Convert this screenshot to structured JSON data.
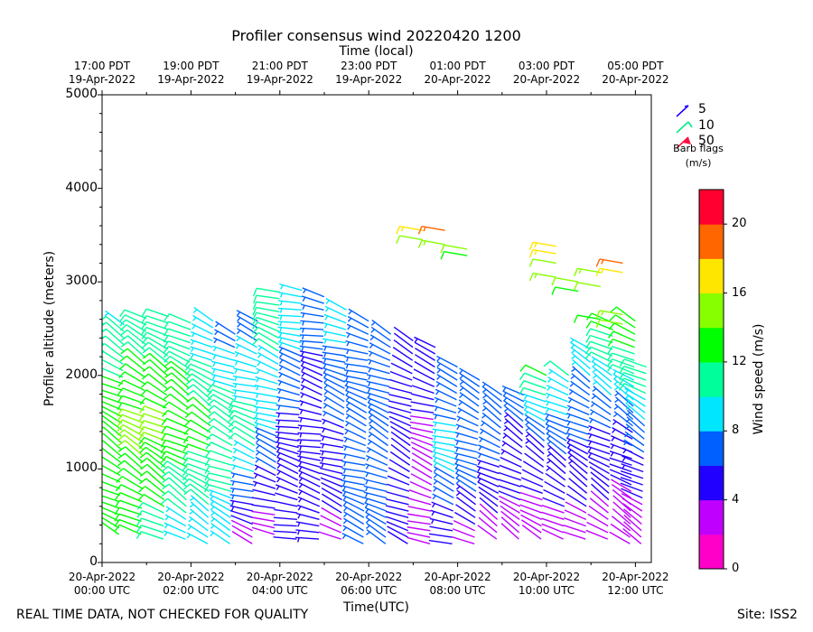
{
  "chart_data": {
    "type": "wind-barb-profile",
    "title": "Profiler consensus wind 20220420 1200",
    "top_axis_title": "Time (local)",
    "xlabel": "Time(UTC)",
    "ylabel": "Profiler altitude (meters)",
    "ylim": [
      0,
      5000
    ],
    "yticks": [
      0,
      1000,
      2000,
      3000,
      4000,
      5000
    ],
    "xlim_hours_utc": [
      0,
      12.33
    ],
    "bottom_ticks": [
      {
        "hour": 0,
        "date": "20-Apr-2022",
        "time": "00:00 UTC"
      },
      {
        "hour": 2,
        "date": "20-Apr-2022",
        "time": "02:00 UTC"
      },
      {
        "hour": 4,
        "date": "20-Apr-2022",
        "time": "04:00 UTC"
      },
      {
        "hour": 6,
        "date": "20-Apr-2022",
        "time": "06:00 UTC"
      },
      {
        "hour": 8,
        "date": "20-Apr-2022",
        "time": "08:00 UTC"
      },
      {
        "hour": 10,
        "date": "20-Apr-2022",
        "time": "10:00 UTC"
      },
      {
        "hour": 12,
        "date": "20-Apr-2022",
        "time": "12:00 UTC"
      }
    ],
    "top_ticks": [
      {
        "hour": 0,
        "time": "17:00 PDT",
        "date": "19-Apr-2022"
      },
      {
        "hour": 2,
        "time": "19:00 PDT",
        "date": "19-Apr-2022"
      },
      {
        "hour": 4,
        "time": "21:00 PDT",
        "date": "19-Apr-2022"
      },
      {
        "hour": 6,
        "time": "23:00 PDT",
        "date": "19-Apr-2022"
      },
      {
        "hour": 8,
        "time": "01:00 PDT",
        "date": "20-Apr-2022"
      },
      {
        "hour": 10,
        "time": "03:00 PDT",
        "date": "20-Apr-2022"
      },
      {
        "hour": 12,
        "time": "05:00 PDT",
        "date": "20-Apr-2022"
      }
    ],
    "legend": {
      "title": "Barb flags",
      "units": "(m/s)",
      "entries": [
        {
          "label": "5",
          "color": "#2200ff"
        },
        {
          "label": "10",
          "color": "#00ee88"
        },
        {
          "label": "50",
          "color": "#ff1040"
        }
      ]
    },
    "colorbar": {
      "label": "Wind speed (m/s)",
      "range": [
        0,
        22
      ],
      "tick_values": [
        0,
        4,
        8,
        12,
        16,
        20
      ],
      "colors": [
        "#ff00c8",
        "#c000ff",
        "#2200ff",
        "#0060ff",
        "#00e6ff",
        "#00ff9a",
        "#00ff00",
        "#88ff00",
        "#ffe600",
        "#ff6600",
        "#ff0030"
      ]
    },
    "columns": [
      {
        "hour": 0.05,
        "alt_min": 300,
        "alt_max": 2600,
        "speed_low": 13,
        "speed_mid": 14,
        "speed_high": 9.5,
        "dir": 300
      },
      {
        "hour": 0.5,
        "alt_min": 300,
        "alt_max": 2600,
        "speed_low": 13,
        "speed_mid": 14,
        "speed_high": 9.5,
        "dir": 300
      },
      {
        "hour": 1.0,
        "alt_min": 300,
        "alt_max": 2650,
        "speed_low": 13,
        "speed_mid": 14.5,
        "speed_high": 10,
        "dir": 300
      },
      {
        "hour": 1.5,
        "alt_min": 250,
        "alt_max": 2650,
        "speed_low": 11,
        "speed_mid": 14.5,
        "speed_high": 10,
        "dir": 300
      },
      {
        "hour": 2.0,
        "alt_min": 250,
        "alt_max": 2600,
        "speed_low": 9,
        "speed_mid": 14,
        "speed_high": 10,
        "dir": 300
      },
      {
        "hour": 2.5,
        "alt_min": 200,
        "alt_max": 2600,
        "speed_low": 8.5,
        "speed_mid": 13,
        "speed_high": 8,
        "dir": 300
      },
      {
        "hour": 3.0,
        "alt_min": 200,
        "alt_max": 2500,
        "speed_low": 8.5,
        "speed_mid": 12,
        "speed_high": 7,
        "dir": 295
      },
      {
        "hour": 3.5,
        "alt_min": 200,
        "alt_max": 2600,
        "speed_low": 3,
        "speed_mid": 11,
        "speed_high": 7,
        "dir": 290
      },
      {
        "hour": 4.0,
        "alt_min": 300,
        "alt_max": 2900,
        "speed_low": 3,
        "speed_mid": 9,
        "speed_high": 11,
        "dir": 290
      },
      {
        "hour": 4.5,
        "alt_min": 250,
        "alt_max": 2950,
        "speed_low": 4.5,
        "speed_mid": 6,
        "speed_high": 10,
        "dir": 285
      },
      {
        "hour": 5.0,
        "alt_min": 250,
        "alt_max": 2900,
        "speed_low": 5,
        "speed_mid": 5,
        "speed_high": 7,
        "dir": 285
      },
      {
        "hour": 5.5,
        "alt_min": 250,
        "alt_max": 2700,
        "speed_low": 3.5,
        "speed_mid": 6,
        "speed_high": 9,
        "dir": 290
      },
      {
        "hour": 6.0,
        "alt_min": 200,
        "alt_max": 2600,
        "speed_low": 6,
        "speed_mid": 7,
        "speed_high": 8,
        "dir": 290
      },
      {
        "hour": 6.5,
        "alt_min": 200,
        "alt_max": 2500,
        "speed_low": 7,
        "speed_mid": 6,
        "speed_high": 7,
        "dir": 295
      },
      {
        "hour": 7.0,
        "alt_min": 200,
        "alt_max": 2400,
        "speed_low": 4,
        "speed_mid": 4,
        "speed_high": 5,
        "dir": 295
      },
      {
        "hour": 7.5,
        "alt_min": 200,
        "alt_max": 2300,
        "speed_low": 3,
        "speed_mid": 3.5,
        "speed_high": 5,
        "dir": 290
      },
      {
        "hour": 8.0,
        "alt_min": 200,
        "alt_max": 2100,
        "speed_low": 4,
        "speed_mid": 9,
        "speed_high": 6,
        "dir": 290
      },
      {
        "hour": 8.5,
        "alt_min": 200,
        "alt_max": 2000,
        "speed_low": 3,
        "speed_mid": 8,
        "speed_high": 6,
        "dir": 295
      },
      {
        "hour": 9.0,
        "alt_min": 250,
        "alt_max": 1800,
        "speed_low": 3,
        "speed_mid": 6,
        "speed_high": 6,
        "dir": 300
      },
      {
        "hour": 9.5,
        "alt_min": 250,
        "alt_max": 1850,
        "speed_low": 3,
        "speed_mid": 5,
        "speed_high": 7,
        "dir": 300
      },
      {
        "hour": 10.0,
        "alt_min": 250,
        "alt_max": 2000,
        "speed_low": 3,
        "speed_mid": 5,
        "speed_high": 12,
        "dir": 300
      },
      {
        "hour": 10.5,
        "alt_min": 250,
        "alt_max": 2000,
        "speed_low": 3,
        "speed_mid": 6,
        "speed_high": 10,
        "dir": 300
      },
      {
        "hour": 11.0,
        "alt_min": 250,
        "alt_max": 2300,
        "speed_low": 3,
        "speed_mid": 6,
        "speed_high": 9,
        "dir": 300
      },
      {
        "hour": 11.5,
        "alt_min": 250,
        "alt_max": 2600,
        "speed_low": 3,
        "speed_mid": 6,
        "speed_high": 13,
        "dir": 300
      },
      {
        "hour": 12.0,
        "alt_min": 200,
        "alt_max": 2600,
        "speed_low": 2,
        "speed_mid": 6,
        "speed_high": 14,
        "dir": 300
      },
      {
        "hour": 12.25,
        "alt_min": 200,
        "alt_max": 2100,
        "speed_low": 2,
        "speed_mid": 6,
        "speed_high": 12,
        "dir": 300
      }
    ],
    "upper_barbs": [
      {
        "hour": 7.5,
        "alt": 3550,
        "speed": 16
      },
      {
        "hour": 7.5,
        "alt": 3450,
        "speed": 14
      },
      {
        "hour": 8.0,
        "alt": 3550,
        "speed": 19
      },
      {
        "hour": 8.0,
        "alt": 3400,
        "speed": 15
      },
      {
        "hour": 8.5,
        "alt": 3350,
        "speed": 14
      },
      {
        "hour": 8.5,
        "alt": 3280,
        "speed": 13
      },
      {
        "hour": 10.5,
        "alt": 3380,
        "speed": 17
      },
      {
        "hour": 10.5,
        "alt": 3300,
        "speed": 16
      },
      {
        "hour": 10.5,
        "alt": 3200,
        "speed": 14
      },
      {
        "hour": 10.5,
        "alt": 3050,
        "speed": 15
      },
      {
        "hour": 11.0,
        "alt": 3000,
        "speed": 14
      },
      {
        "hour": 11.0,
        "alt": 2900,
        "speed": 13
      },
      {
        "hour": 11.5,
        "alt": 3100,
        "speed": 15
      },
      {
        "hour": 11.5,
        "alt": 2950,
        "speed": 14
      },
      {
        "hour": 12.0,
        "alt": 3200,
        "speed": 19
      },
      {
        "hour": 12.0,
        "alt": 3100,
        "speed": 17
      },
      {
        "hour": 11.5,
        "alt": 2600,
        "speed": 13
      },
      {
        "hour": 12.0,
        "alt": 2650,
        "speed": 15
      },
      {
        "hour": 12.0,
        "alt": 2550,
        "speed": 14
      }
    ]
  },
  "footer": {
    "disclaimer": "REAL TIME DATA, NOT CHECKED FOR QUALITY",
    "site": "Site: ISS2"
  }
}
